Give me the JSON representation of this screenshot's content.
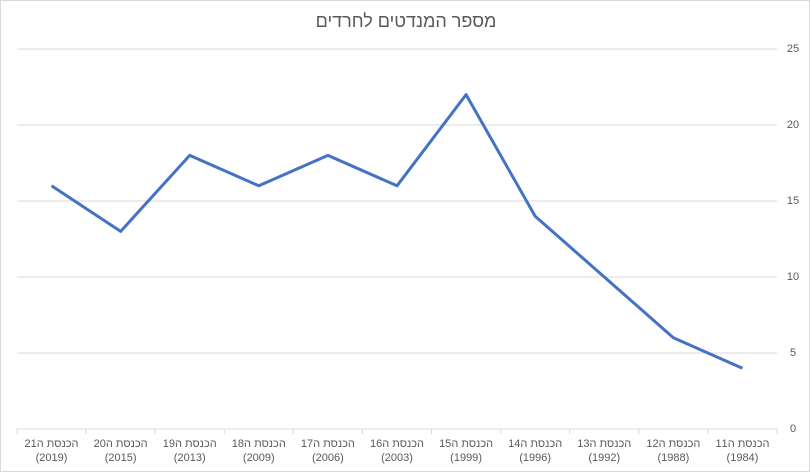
{
  "chart_data": {
    "type": "line",
    "title": "מספר המנדטים לחרדים",
    "categories": [
      "הכנסת ה21 (2019)",
      "הכנסת ה20 (2015)",
      "הכנסת ה19 (2013)",
      "הכנסת ה18 (2009)",
      "הכנסת ה17 (2006)",
      "הכנסת ה16 (2003)",
      "הכנסת ה15 (1999)",
      "הכנסת ה14 (1996)",
      "הכנסת ה13 (1992)",
      "הכנסת ה12 (1988)",
      "הכנסת ה11 (1984)"
    ],
    "values": [
      16,
      13,
      18,
      16,
      18,
      16,
      22,
      14,
      10,
      6,
      4
    ],
    "color": "#4472c4",
    "ylim": [
      0,
      25
    ],
    "yticks": [
      0,
      5,
      10,
      15,
      20,
      25
    ],
    "grid": true,
    "y_axis_side": "right"
  }
}
